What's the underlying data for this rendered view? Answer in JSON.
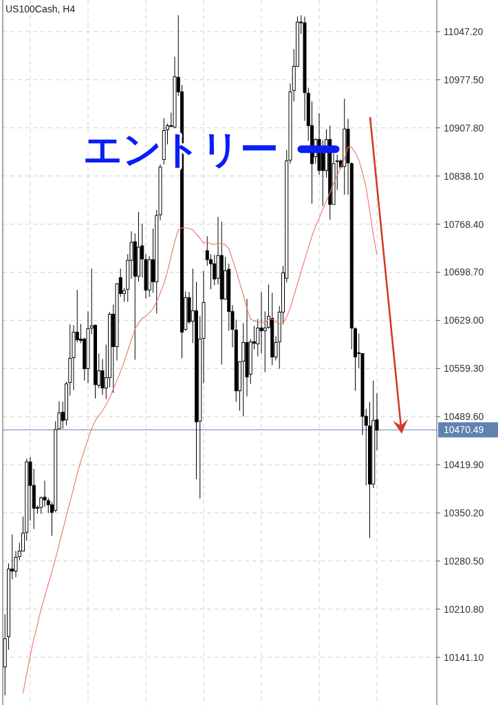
{
  "chart_data": {
    "type": "candlestick",
    "title": "US100Cash, H4",
    "color": "#000000",
    "categories": [
      null,
      null,
      null,
      null,
      null,
      null,
      null,
      null,
      null,
      null,
      null,
      null,
      null,
      null,
      null,
      null,
      null,
      null,
      null,
      null,
      null,
      null,
      null,
      null,
      null,
      null,
      null,
      null,
      null,
      null,
      null,
      null,
      null,
      null,
      null,
      null,
      null,
      null,
      null,
      null,
      null,
      null,
      null,
      null,
      null,
      null,
      null,
      null,
      null,
      null,
      null,
      null,
      null,
      null,
      null,
      null,
      null,
      null,
      null,
      null,
      null,
      null,
      null,
      null,
      null,
      null,
      null,
      null,
      null,
      null,
      null,
      null,
      null,
      null,
      null,
      null,
      null,
      null,
      null,
      null,
      null,
      null,
      null,
      null,
      null,
      null,
      null,
      null,
      null,
      null,
      null,
      null,
      null,
      null,
      null,
      null,
      null,
      null,
      null,
      null,
      null,
      null,
      null,
      null
    ],
    "ohlc": [
      [
        10127,
        10203,
        10086,
        10168
      ],
      [
        10171,
        10277,
        10152,
        10269
      ],
      [
        10269,
        10319,
        10254,
        10266
      ],
      [
        10266,
        10295,
        10257,
        10286
      ],
      [
        10287,
        10307,
        10282,
        10295
      ],
      [
        10295,
        10345,
        10295,
        10321
      ],
      [
        10322,
        10429,
        10310,
        10424
      ],
      [
        10424,
        10431,
        10339,
        10390
      ],
      [
        10390,
        10414,
        10327,
        10357
      ],
      [
        10358,
        10361,
        10349,
        10357
      ],
      [
        10358,
        10374,
        10349,
        10372
      ],
      [
        10373,
        10397,
        10359,
        10369
      ],
      [
        10368,
        10372,
        10350,
        10362
      ],
      [
        10362,
        10366,
        10317,
        10351
      ],
      [
        10354,
        10483,
        10351,
        10471
      ],
      [
        10472,
        10512,
        10471,
        10495
      ],
      [
        10496,
        10511,
        10472,
        10484
      ],
      [
        10485,
        10540,
        10477,
        10537
      ],
      [
        10539,
        10623,
        10520,
        10574
      ],
      [
        10575,
        10622,
        10528,
        10612
      ],
      [
        10612,
        10673,
        10597,
        10601
      ],
      [
        10602,
        10624,
        10596,
        10600
      ],
      [
        10602,
        10604,
        10542,
        10559
      ],
      [
        10559,
        10642,
        10538,
        10617
      ],
      [
        10618,
        10704,
        10609,
        10621
      ],
      [
        10622,
        10623,
        10516,
        10536
      ],
      [
        10535,
        10581,
        10531,
        10556
      ],
      [
        10556,
        10573,
        10521,
        10531
      ],
      [
        10531,
        10594,
        10515,
        10546
      ],
      [
        10546,
        10641,
        10532,
        10638
      ],
      [
        10638,
        10652,
        10524,
        10591
      ],
      [
        10591,
        10683,
        10571,
        10682
      ],
      [
        10691,
        10704,
        10663,
        10668
      ],
      [
        10668,
        10676,
        10656,
        10672
      ],
      [
        10674,
        10725,
        10656,
        10716
      ],
      [
        10716,
        10758,
        10689,
        10742
      ],
      [
        10743,
        10755,
        10572,
        10693
      ],
      [
        10693,
        10786,
        10685,
        10735
      ],
      [
        10737,
        10769,
        10691,
        10718
      ],
      [
        10717,
        10725,
        10661,
        10673
      ],
      [
        10673,
        10722,
        10663,
        10717
      ],
      [
        10717,
        10762,
        10669,
        10685
      ],
      [
        10685,
        10789,
        10639,
        10781
      ],
      [
        10782,
        10855,
        10774,
        10851
      ],
      [
        10862,
        10922,
        10855,
        10904
      ],
      [
        10905,
        10914,
        10884,
        10911
      ],
      [
        10911,
        10930,
        10909,
        10910
      ],
      [
        10909,
        11011,
        10907,
        10982
      ],
      [
        10981,
        11071,
        10954,
        10960
      ],
      [
        10960,
        10970,
        10574,
        10612
      ],
      [
        10616,
        10671,
        10614,
        10662
      ],
      [
        10662,
        10670,
        10624,
        10627
      ],
      [
        10628,
        10704,
        10596,
        10643
      ],
      [
        10643,
        10685,
        10399,
        10482
      ],
      [
        10483,
        10635,
        10371,
        10602
      ],
      [
        10603,
        10701,
        10538,
        10655
      ],
      [
        10730,
        10751,
        10708,
        10717
      ],
      [
        10717,
        10725,
        10674,
        10711
      ],
      [
        10711,
        10724,
        10680,
        10689
      ],
      [
        10690,
        10779,
        10681,
        10723
      ],
      [
        10723,
        10772,
        10565,
        10660
      ],
      [
        10660,
        10721,
        10659,
        10701
      ],
      [
        10703,
        10711,
        10614,
        10642
      ],
      [
        10642,
        10651,
        10590,
        10616
      ],
      [
        10615,
        10630,
        10511,
        10527
      ],
      [
        10527,
        10570,
        10498,
        10569
      ],
      [
        10570,
        10625,
        10490,
        10597
      ],
      [
        10597,
        10660,
        10519,
        10547
      ],
      [
        10551,
        10602,
        10537,
        10598
      ],
      [
        10598,
        10621,
        10587,
        10596
      ],
      [
        10595,
        10631,
        10577,
        10618
      ],
      [
        10618,
        10670,
        10581,
        10614
      ],
      [
        10614,
        10642,
        10554,
        10618
      ],
      [
        10619,
        10681,
        10617,
        10635
      ],
      [
        10632,
        10669,
        10564,
        10576
      ],
      [
        10576,
        10606,
        10571,
        10597
      ],
      [
        10598,
        10650,
        10559,
        10641
      ],
      [
        10641,
        10708,
        10623,
        10698
      ],
      [
        10690,
        10876,
        10684,
        10860
      ],
      [
        10861,
        10972,
        10856,
        10960
      ],
      [
        10962,
        11022,
        10946,
        10997
      ],
      [
        10997,
        11069,
        10996,
        11061
      ],
      [
        11060,
        11071,
        11044,
        11061
      ],
      [
        11060,
        11069,
        10918,
        10959
      ],
      [
        10958,
        10966,
        10889,
        10911
      ],
      [
        10911,
        10946,
        10798,
        10856
      ],
      [
        10866,
        10893,
        10856,
        10891
      ],
      [
        10891,
        10929,
        10840,
        10846
      ],
      [
        10871,
        10890,
        10795,
        10846
      ],
      [
        10846,
        10906,
        10836,
        10891
      ],
      [
        10891,
        10911,
        10775,
        10797
      ],
      [
        10797,
        10871,
        10797,
        10856
      ],
      [
        10859,
        10869,
        10818,
        10860
      ],
      [
        10860,
        10862,
        10849,
        10851
      ],
      [
        10852,
        10950,
        10811,
        10906
      ],
      [
        10906,
        10921,
        10811,
        10857
      ],
      [
        10856,
        10858,
        10587,
        10618
      ],
      [
        10617,
        10619,
        10527,
        10576
      ],
      [
        10582,
        10610,
        10560,
        10582
      ],
      [
        10581,
        10581,
        10463,
        10490
      ],
      [
        10490,
        10501,
        10390,
        10477
      ],
      [
        10476,
        10511,
        10314,
        10392
      ],
      [
        10392,
        10542,
        10386,
        10484
      ],
      [
        10485,
        10524,
        10441,
        10470
      ]
    ],
    "series": [
      {
        "type": "line",
        "color": "#f07c72",
        "values": [
          null,
          null,
          null,
          null,
          null,
          10089,
          10117,
          10144,
          10168,
          10189,
          10211,
          10229,
          10247,
          10265,
          10284,
          10305,
          10325,
          10346,
          10366,
          10386,
          10407,
          10425,
          10441,
          10457,
          10472,
          10484,
          10491,
          10498,
          10507,
          10517,
          10530,
          10542,
          10555,
          10569,
          10585,
          10601,
          10616,
          10625,
          10632,
          10635,
          10640,
          10646,
          10656,
          10669,
          10682,
          10700,
          10722,
          10743,
          10760,
          10763,
          10763,
          10762,
          10760,
          10754,
          10748,
          10741,
          10742,
          10740,
          10739,
          10741,
          10740,
          10739,
          10733,
          10717,
          10701,
          10683,
          10666,
          10646,
          10631,
          10628,
          10627,
          10626,
          10626,
          10631,
          10631,
          10627,
          10624,
          10625,
          10634,
          10647,
          10665,
          10682,
          10700,
          10717,
          10734,
          10751,
          10765,
          10777,
          10790,
          10802,
          10814,
          10827,
          10839,
          10851,
          10863,
          10880,
          10880,
          10872,
          10861,
          10843,
          10822,
          10788,
          10753,
          10724
        ]
      }
    ],
    "ylim": [
      10072,
      11093
    ],
    "yticks": [
      {
        "value": 10141.1,
        "label": "10141.10"
      },
      {
        "value": 10210.8,
        "label": "10210.80"
      },
      {
        "value": 10280.5,
        "label": "10280.50"
      },
      {
        "value": 10350.2,
        "label": "10350.20"
      },
      {
        "value": 10419.9,
        "label": "10419.90"
      },
      {
        "value": 10489.6,
        "label": "10489.60"
      },
      {
        "value": 10559.3,
        "label": "10559.30"
      },
      {
        "value": 10629,
        "label": "10629.00"
      },
      {
        "value": 10698.7,
        "label": "10698.70"
      },
      {
        "value": 10768.4,
        "label": "10768.40"
      },
      {
        "value": 10838.1,
        "label": "10838.10"
      },
      {
        "value": 10907.8,
        "label": "10907.80"
      },
      {
        "value": 10977.5,
        "label": "10977.50"
      },
      {
        "value": 11047.2,
        "label": "11047.20"
      }
    ],
    "tick_labels": "y",
    "grid": true,
    "ref_lines": [
      {
        "axis": "y",
        "value": 10470.49,
        "label": "10470.49",
        "color": "#5f82b0"
      }
    ],
    "annotations": [
      {
        "text": "エントリー",
        "y": 10877
      }
    ]
  }
}
